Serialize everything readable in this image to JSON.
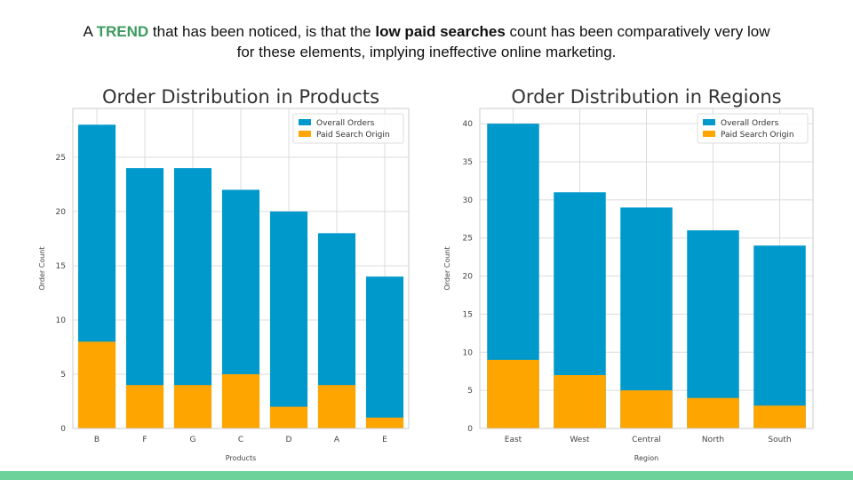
{
  "headline": {
    "line1_pre": "A ",
    "trend_word": "TREND",
    "line1_mid": " that has been noticed, is that the ",
    "bold_phrase": "low paid searches",
    "line1_post": " count has been comparatively very low",
    "line2": "for these elements, implying ineffective online marketing."
  },
  "colors": {
    "overall": "#0099cc",
    "paid": "#ffa500",
    "accent_green": "#3d9b5f",
    "footer_bar": "#6dd29a"
  },
  "chart_data": [
    {
      "type": "bar",
      "title": "Order Distribution in Products",
      "xlabel": "Products",
      "ylabel": "Order Count",
      "categories": [
        "B",
        "F",
        "G",
        "C",
        "D",
        "A",
        "E"
      ],
      "series": [
        {
          "name": "Overall Orders",
          "values": [
            28,
            24,
            24,
            22,
            20,
            18,
            14
          ]
        },
        {
          "name": "Paid Search Origin",
          "values": [
            8,
            4,
            4,
            5,
            2,
            4,
            1
          ]
        }
      ],
      "ylim": [
        0,
        29.5
      ],
      "yticks": [
        0,
        5,
        10,
        15,
        20,
        25
      ],
      "grid": true,
      "legend": "top-right"
    },
    {
      "type": "bar",
      "title": "Order Distribution in Regions",
      "xlabel": "Region",
      "ylabel": "Order Count",
      "categories": [
        "East",
        "West",
        "Central",
        "North",
        "South"
      ],
      "series": [
        {
          "name": "Overall Orders",
          "values": [
            40,
            31,
            29,
            26,
            24
          ]
        },
        {
          "name": "Paid Search Origin",
          "values": [
            9,
            7,
            5,
            4,
            3
          ]
        }
      ],
      "ylim": [
        0,
        42
      ],
      "yticks": [
        0,
        5,
        10,
        15,
        20,
        25,
        30,
        35,
        40
      ],
      "grid": true,
      "legend": "top-right"
    }
  ]
}
